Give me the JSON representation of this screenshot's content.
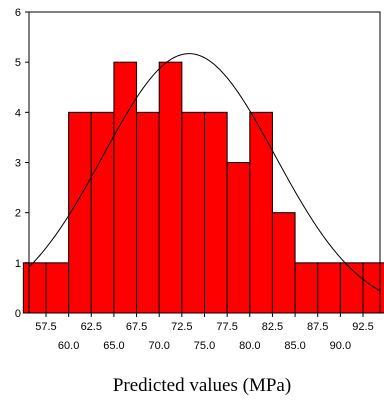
{
  "chart_data": {
    "type": "bar",
    "subtype": "histogram",
    "title": "",
    "xlabel": "Predicted values (MPa)",
    "ylabel": "",
    "xlim": [
      55.625,
      94.375
    ],
    "ylim": [
      0,
      6
    ],
    "bin_width": 2.5,
    "bins": [
      {
        "center": 56.25,
        "count": 1
      },
      {
        "center": 58.75,
        "count": 1
      },
      {
        "center": 61.25,
        "count": 4
      },
      {
        "center": 63.75,
        "count": 4
      },
      {
        "center": 66.25,
        "count": 5
      },
      {
        "center": 68.75,
        "count": 4
      },
      {
        "center": 71.25,
        "count": 5
      },
      {
        "center": 73.75,
        "count": 4
      },
      {
        "center": 76.25,
        "count": 4
      },
      {
        "center": 78.75,
        "count": 3
      },
      {
        "center": 81.25,
        "count": 4
      },
      {
        "center": 83.75,
        "count": 2
      },
      {
        "center": 86.25,
        "count": 1
      },
      {
        "center": 88.75,
        "count": 1
      },
      {
        "center": 91.25,
        "count": 1
      },
      {
        "center": 93.75,
        "count": 1
      }
    ],
    "x_ticks_upper": [
      "57.5",
      "62.5",
      "67.5",
      "72.5",
      "77.5",
      "82.5",
      "87.5",
      "92.5"
    ],
    "x_ticks_lower": [
      "60.0",
      "65.0",
      "70.0",
      "75.0",
      "80.0",
      "85.0",
      "90.0"
    ],
    "y_ticks": [
      "0",
      "1",
      "2",
      "3",
      "4",
      "5",
      "6"
    ],
    "normal_curve": {
      "mean": 73.3,
      "sd": 9.5,
      "peak": 5.17
    },
    "bar_color": "#ff0000",
    "bar_edge_color": "#000000",
    "curve_color": "#000000",
    "grid": false,
    "legend": "none"
  }
}
